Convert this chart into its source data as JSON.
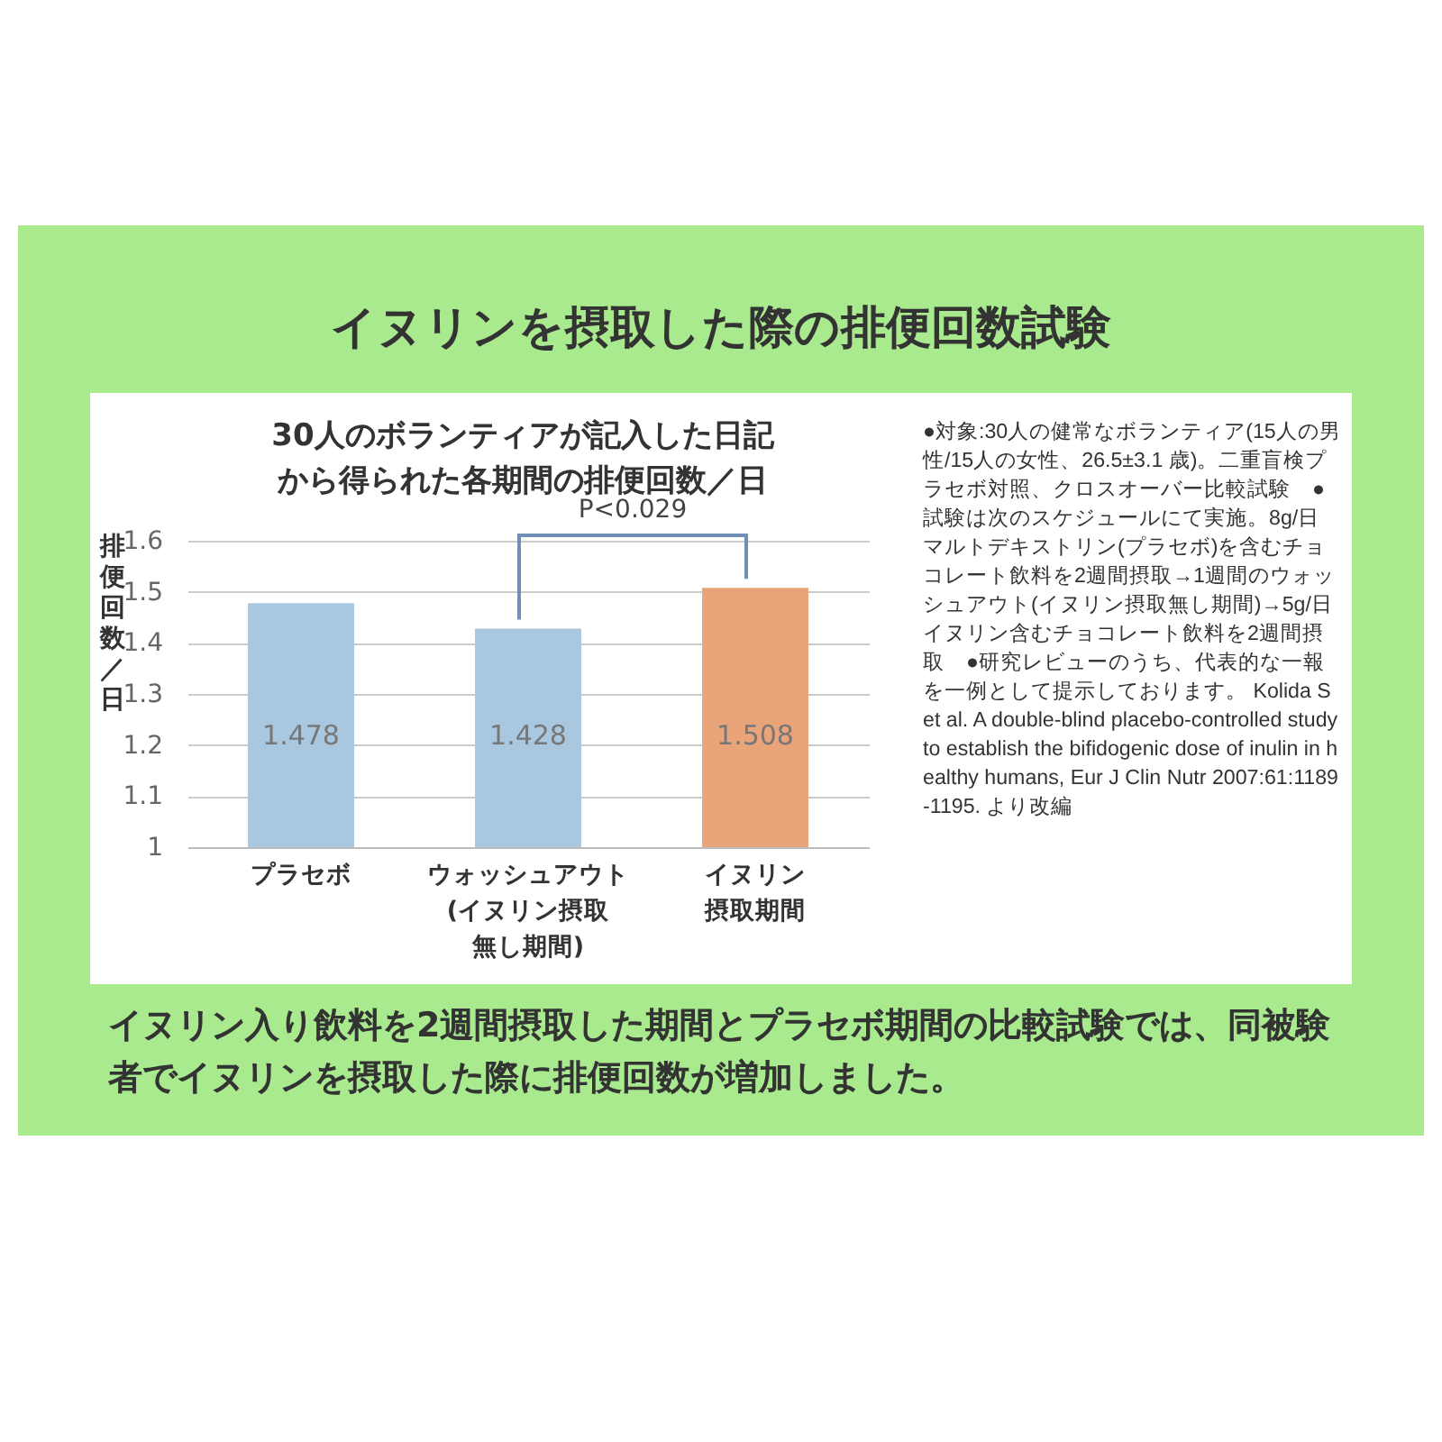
{
  "chart_data": {
    "type": "bar",
    "title": "イヌリンを摂取した際の排便回数試験",
    "subtitle": "30人のボランティアが記入した日記から得られた各期間の排便回数／日",
    "ylabel": "排便回数／日",
    "categories": [
      "プラセボ",
      "ウォッシュアウト(イヌリン摂取無し期間)",
      "イヌリン摂取期間"
    ],
    "values": [
      1.478,
      1.428,
      1.508
    ],
    "colors": [
      "#a9c8df",
      "#a9c8df",
      "#e9a47a"
    ],
    "data_labels": true,
    "ylim": [
      1,
      1.6
    ],
    "yticks": [
      1,
      1.1,
      1.2,
      1.3,
      1.4,
      1.5,
      1.6
    ],
    "grid": "y",
    "annotations": [
      "P<0.029",
      "●対象:30人の健常なボランティア(15人の男性/15人の女性、26.5±3.1 歳)。二重盲検プラセボ対照、クロスオーバー比較試験　●試験は次のスケジュールにて実施。8g/日マルトデキストリン(プラセボ)を含むチョコレート飲料を2週間摂取→1週間のウォッシュアウト(イヌリン摂取無し期間)→5g/日イヌリン含むチョコレート飲料を2週間摂取　●研究レビューのうち、代表的な一報を一例として提示しております。 Kolida S et al. A double-blind placebo-controlled study to establish the bifidogenic dose of inulin in healthy humans, Eur J Clin Nutr 2007:61:1189-1195. より改編",
      "イヌリン入り飲料を2週間摂取した期間とプラセボ期間の比較試験では、同被験者でイヌリンを摂取した際に排便回数が増加しました。"
    ]
  }
}
